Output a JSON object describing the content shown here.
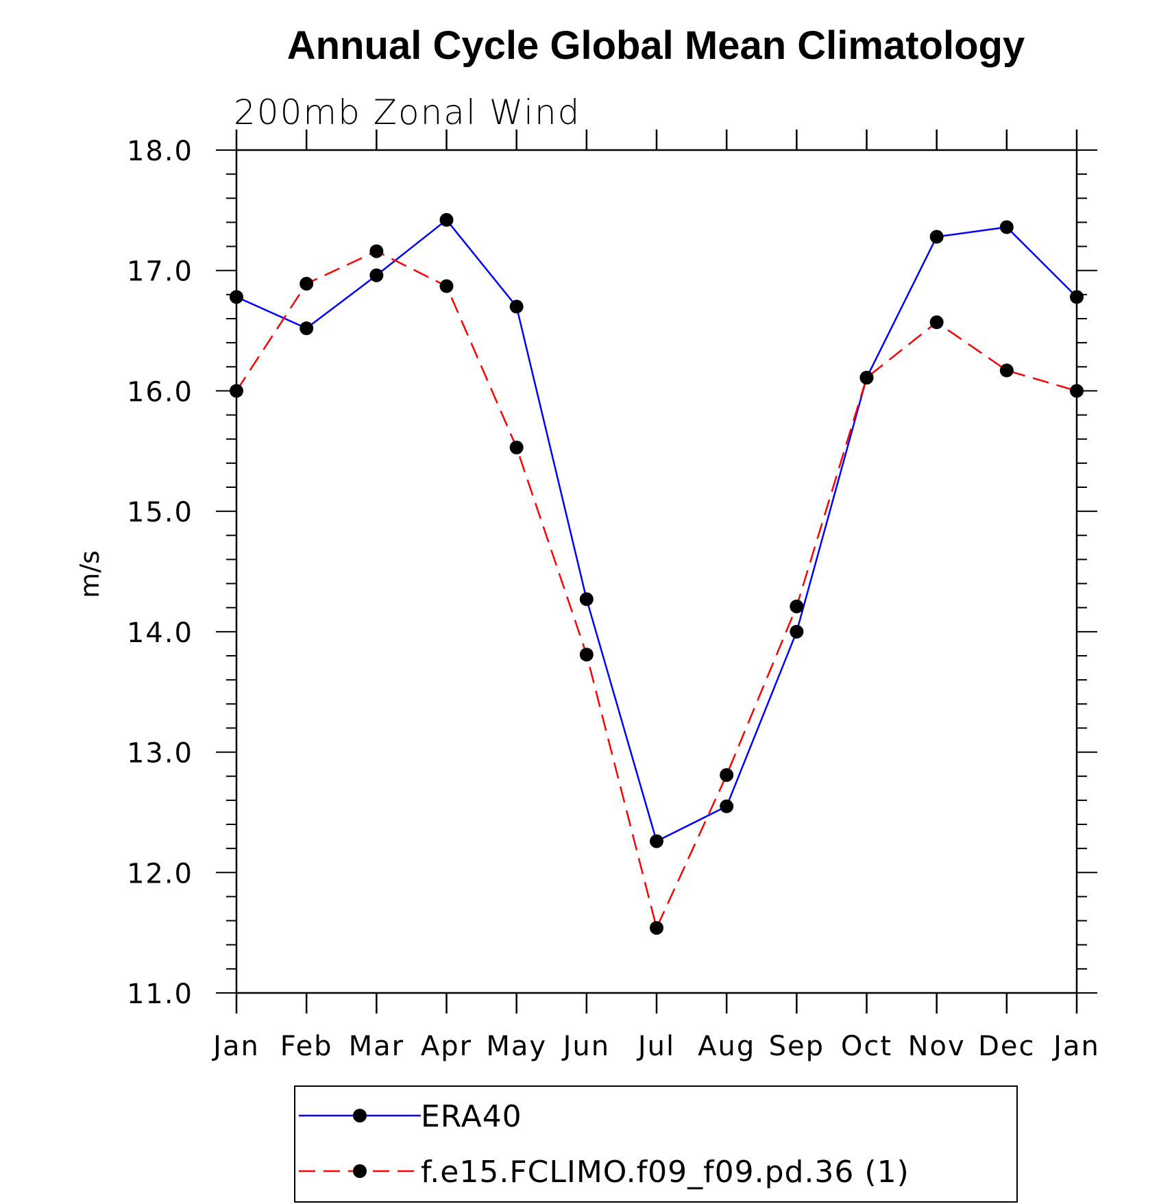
{
  "chart_data": {
    "type": "line",
    "title": "Annual Cycle Global Mean Climatology",
    "subtitle": "200mb Zonal Wind",
    "xlabel": "",
    "ylabel": "m/s",
    "categories": [
      "Jan",
      "Feb",
      "Mar",
      "Apr",
      "May",
      "Jun",
      "Jul",
      "Aug",
      "Sep",
      "Oct",
      "Nov",
      "Dec",
      "Jan"
    ],
    "ylim": [
      11.0,
      18.0
    ],
    "yticks": [
      "11.0",
      "12.0",
      "13.0",
      "14.0",
      "15.0",
      "16.0",
      "17.0",
      "18.0"
    ],
    "legend_position": "bottom",
    "grid": false,
    "series": [
      {
        "name": "ERA40",
        "color": "#0000ff",
        "dash": "solid",
        "values": [
          16.78,
          16.52,
          16.96,
          17.42,
          16.7,
          14.27,
          12.26,
          12.55,
          14.0,
          16.11,
          17.28,
          17.36,
          16.78
        ]
      },
      {
        "name": "f.e15.FCLIMO.f09_f09.pd.36 (1)",
        "color": "#ff0000",
        "dash": "dashed",
        "values": [
          16.0,
          16.89,
          17.16,
          16.87,
          15.53,
          13.81,
          11.54,
          12.81,
          14.21,
          16.11,
          16.57,
          16.17,
          16.0
        ]
      }
    ]
  }
}
